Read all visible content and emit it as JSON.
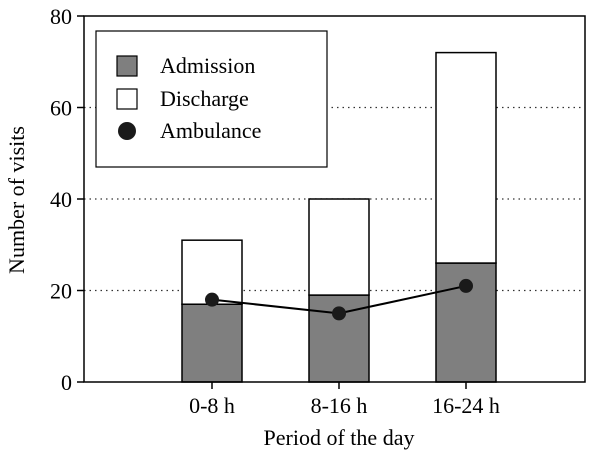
{
  "chart_data": {
    "type": "bar",
    "stacked": true,
    "title": "",
    "xlabel": "Period of the day",
    "ylabel": "Number of visits",
    "ylim": [
      0,
      80
    ],
    "yticks": [
      0,
      20,
      40,
      60,
      80
    ],
    "categories": [
      "0-8 h",
      "8-16 h",
      "16-24 h"
    ],
    "series": [
      {
        "name": "Admission",
        "kind": "bar",
        "color": "#7f7f7f",
        "values": [
          17,
          19,
          26
        ]
      },
      {
        "name": "Discharge",
        "kind": "bar",
        "color": "#ffffff",
        "values": [
          14,
          21,
          46
        ]
      },
      {
        "name": "Ambulance",
        "kind": "line-marker",
        "color": "#1a1a1a",
        "values": [
          18,
          15,
          21
        ]
      }
    ],
    "grid": {
      "horizontal": true,
      "style": "dotted"
    },
    "legend": {
      "placement": "top-left"
    }
  }
}
